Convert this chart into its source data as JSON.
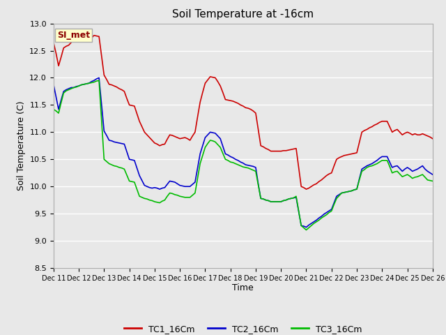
{
  "title": "Soil Temperature at -16cm",
  "xlabel": "Time",
  "ylabel": "Soil Temperature (C)",
  "ylim": [
    8.5,
    13.0
  ],
  "xtick_labels": [
    "Dec 11",
    "Dec 12",
    "Dec 13",
    "Dec 14",
    "Dec 15",
    "Dec 16",
    "Dec 17",
    "Dec 18",
    "Dec 19",
    "Dec 20",
    "Dec 21",
    "Dec 22",
    "Dec 23",
    "Dec 24",
    "Dec 25",
    "Dec 26"
  ],
  "annotation_text": "SI_met",
  "annotation_bg": "#ffffcc",
  "annotation_border": "#aaaaaa",
  "bg_color": "#e8e8e8",
  "grid_color": "#ffffff",
  "tc1_color": "#cc0000",
  "tc2_color": "#0000cc",
  "tc3_color": "#00bb00",
  "legend_labels": [
    "TC1_16Cm",
    "TC2_16Cm",
    "TC3_16Cm"
  ],
  "tc1_x": [
    0,
    0.1,
    0.2,
    0.3,
    0.4,
    0.5,
    0.6,
    0.7,
    0.8,
    0.9,
    1.0,
    1.1,
    1.2,
    1.3,
    1.4,
    1.5,
    1.6,
    1.7,
    1.8,
    1.9,
    2.0,
    2.1,
    2.2,
    2.3,
    2.4,
    2.5,
    2.6,
    2.7,
    2.8,
    2.9,
    3.0,
    3.1,
    3.2,
    3.3,
    3.4,
    3.5,
    3.6,
    3.7,
    3.8,
    3.9,
    4.0,
    4.1,
    4.2,
    4.3,
    4.4,
    4.5,
    4.6,
    4.7,
    4.8,
    4.9,
    5.0,
    5.1,
    5.2,
    5.3,
    5.4,
    5.5,
    5.6,
    5.7,
    5.8,
    5.9,
    6.0,
    6.1,
    6.2,
    6.3,
    6.4,
    6.5,
    6.6,
    6.7,
    6.8,
    6.9,
    7.0,
    7.1,
    7.2,
    7.3,
    7.4,
    7.5,
    7.6,
    7.7,
    7.8,
    7.9,
    8.0,
    8.1,
    8.2,
    8.3,
    8.4,
    8.5,
    8.6,
    8.7,
    8.8,
    8.9,
    9.0,
    9.1,
    9.2,
    9.3,
    9.4,
    9.5,
    9.6,
    9.7,
    9.8,
    9.9,
    10.0,
    10.1,
    10.2,
    10.3,
    10.4,
    10.5,
    10.6,
    10.7,
    10.8,
    10.9,
    11.0,
    11.1,
    11.2,
    11.3,
    11.4,
    11.5,
    11.6,
    11.7,
    11.8,
    11.9,
    12.0,
    12.1,
    12.2,
    12.3,
    12.4,
    12.5,
    12.6,
    12.7,
    12.8,
    12.9,
    13.0,
    13.1,
    13.2,
    13.3,
    13.4,
    13.5,
    13.6,
    13.7,
    13.8,
    13.9,
    14.0,
    14.1,
    14.2,
    14.3,
    14.4,
    14.5,
    14.6,
    14.7,
    14.8,
    14.9,
    15.0
  ],
  "tc1_y": [
    12.65,
    12.45,
    12.22,
    12.38,
    12.55,
    12.58,
    12.6,
    12.65,
    12.7,
    12.73,
    12.75,
    12.74,
    12.72,
    12.7,
    12.68,
    12.73,
    12.78,
    12.77,
    12.76,
    12.4,
    12.05,
    11.97,
    11.88,
    11.87,
    11.85,
    11.83,
    11.8,
    11.78,
    11.75,
    11.62,
    11.5,
    11.49,
    11.48,
    11.34,
    11.2,
    11.1,
    11.0,
    10.95,
    10.9,
    10.85,
    10.8,
    10.78,
    10.75,
    10.77,
    10.78,
    10.87,
    10.95,
    10.94,
    10.92,
    10.9,
    10.88,
    10.89,
    10.9,
    10.88,
    10.85,
    10.93,
    11.0,
    11.28,
    11.55,
    11.73,
    11.9,
    11.96,
    12.02,
    12.01,
    12.0,
    11.93,
    11.85,
    11.73,
    11.6,
    11.59,
    11.58,
    11.57,
    11.55,
    11.53,
    11.5,
    11.48,
    11.45,
    11.44,
    11.42,
    11.39,
    11.35,
    11.05,
    10.75,
    10.73,
    10.7,
    10.68,
    10.65,
    10.65,
    10.65,
    10.65,
    10.65,
    10.66,
    10.66,
    10.67,
    10.68,
    10.69,
    10.7,
    10.35,
    10.0,
    9.98,
    9.95,
    9.97,
    10.0,
    10.03,
    10.05,
    10.09,
    10.12,
    10.16,
    10.2,
    10.23,
    10.25,
    10.38,
    10.5,
    10.53,
    10.55,
    10.57,
    10.58,
    10.59,
    10.6,
    10.61,
    10.62,
    10.81,
    11.0,
    11.03,
    11.05,
    11.08,
    11.1,
    11.13,
    11.15,
    11.18,
    11.2,
    11.2,
    11.2,
    11.1,
    11.0,
    11.03,
    11.05,
    11.0,
    10.95,
    10.98,
    11.0,
    10.98,
    10.95,
    10.97,
    10.95,
    10.95,
    10.97,
    10.95,
    10.93,
    10.91,
    10.88
  ],
  "tc2_x": [
    0,
    0.1,
    0.2,
    0.3,
    0.4,
    0.5,
    0.6,
    0.7,
    0.8,
    0.9,
    1.0,
    1.1,
    1.2,
    1.3,
    1.4,
    1.5,
    1.6,
    1.7,
    1.8,
    1.9,
    2.0,
    2.1,
    2.2,
    2.3,
    2.4,
    2.5,
    2.6,
    2.7,
    2.8,
    2.9,
    3.0,
    3.1,
    3.2,
    3.3,
    3.4,
    3.5,
    3.6,
    3.7,
    3.8,
    3.9,
    4.0,
    4.1,
    4.2,
    4.3,
    4.4,
    4.5,
    4.6,
    4.7,
    4.8,
    4.9,
    5.0,
    5.1,
    5.2,
    5.3,
    5.4,
    5.5,
    5.6,
    5.7,
    5.8,
    5.9,
    6.0,
    6.1,
    6.2,
    6.3,
    6.4,
    6.5,
    6.6,
    6.7,
    6.8,
    6.9,
    7.0,
    7.1,
    7.2,
    7.3,
    7.4,
    7.5,
    7.6,
    7.7,
    7.8,
    7.9,
    8.0,
    8.1,
    8.2,
    8.3,
    8.4,
    8.5,
    8.6,
    8.7,
    8.8,
    8.9,
    9.0,
    9.1,
    9.2,
    9.3,
    9.4,
    9.5,
    9.6,
    9.7,
    9.8,
    9.9,
    10.0,
    10.1,
    10.2,
    10.3,
    10.4,
    10.5,
    10.6,
    10.7,
    10.8,
    10.9,
    11.0,
    11.1,
    11.2,
    11.3,
    11.4,
    11.5,
    11.6,
    11.7,
    11.8,
    11.9,
    12.0,
    12.1,
    12.2,
    12.3,
    12.4,
    12.5,
    12.6,
    12.7,
    12.8,
    12.9,
    13.0,
    13.1,
    13.2,
    13.3,
    13.4,
    13.5,
    13.6,
    13.7,
    13.8,
    13.9,
    14.0,
    14.1,
    14.2,
    14.3,
    14.4,
    14.5,
    14.6,
    14.7,
    14.8,
    14.9,
    15.0
  ],
  "tc2_y": [
    11.88,
    11.65,
    11.42,
    11.59,
    11.75,
    11.78,
    11.8,
    11.82,
    11.82,
    11.84,
    11.85,
    11.87,
    11.88,
    11.89,
    11.9,
    11.93,
    11.95,
    11.98,
    12.0,
    11.51,
    11.02,
    10.94,
    10.85,
    10.84,
    10.82,
    10.81,
    10.8,
    10.79,
    10.78,
    10.64,
    10.5,
    10.49,
    10.48,
    10.34,
    10.2,
    10.11,
    10.02,
    10.0,
    9.98,
    9.97,
    9.98,
    9.97,
    9.95,
    9.97,
    9.98,
    10.04,
    10.1,
    10.09,
    10.08,
    10.05,
    10.02,
    10.01,
    10.0,
    10.0,
    10.0,
    10.04,
    10.08,
    10.34,
    10.6,
    10.75,
    10.9,
    10.95,
    11.0,
    10.99,
    10.98,
    10.93,
    10.88,
    10.74,
    10.6,
    10.58,
    10.55,
    10.53,
    10.5,
    10.48,
    10.45,
    10.43,
    10.4,
    10.39,
    10.38,
    10.37,
    10.35,
    10.05,
    9.78,
    9.77,
    9.75,
    9.74,
    9.72,
    9.72,
    9.72,
    9.72,
    9.72,
    9.74,
    9.75,
    9.77,
    9.78,
    9.79,
    9.8,
    9.54,
    9.28,
    9.27,
    9.25,
    9.29,
    9.32,
    9.35,
    9.38,
    9.42,
    9.45,
    9.49,
    9.52,
    9.55,
    9.58,
    9.7,
    9.82,
    9.85,
    9.88,
    9.89,
    9.9,
    9.91,
    9.92,
    9.94,
    9.95,
    10.14,
    10.32,
    10.35,
    10.38,
    10.4,
    10.42,
    10.45,
    10.48,
    10.52,
    10.55,
    10.55,
    10.55,
    10.45,
    10.35,
    10.37,
    10.38,
    10.33,
    10.28,
    10.32,
    10.35,
    10.32,
    10.28,
    10.3,
    10.32,
    10.35,
    10.38,
    10.32,
    10.28,
    10.25,
    10.22
  ],
  "tc3_x": [
    0,
    0.1,
    0.2,
    0.3,
    0.4,
    0.5,
    0.6,
    0.7,
    0.8,
    0.9,
    1.0,
    1.1,
    1.2,
    1.3,
    1.4,
    1.5,
    1.6,
    1.7,
    1.8,
    1.9,
    2.0,
    2.1,
    2.2,
    2.3,
    2.4,
    2.5,
    2.6,
    2.7,
    2.8,
    2.9,
    3.0,
    3.1,
    3.2,
    3.3,
    3.4,
    3.5,
    3.6,
    3.7,
    3.8,
    3.9,
    4.0,
    4.1,
    4.2,
    4.3,
    4.4,
    4.5,
    4.6,
    4.7,
    4.8,
    4.9,
    5.0,
    5.1,
    5.2,
    5.3,
    5.4,
    5.5,
    5.6,
    5.7,
    5.8,
    5.9,
    6.0,
    6.1,
    6.2,
    6.3,
    6.4,
    6.5,
    6.6,
    6.7,
    6.8,
    6.9,
    7.0,
    7.1,
    7.2,
    7.3,
    7.4,
    7.5,
    7.6,
    7.7,
    7.8,
    7.9,
    8.0,
    8.1,
    8.2,
    8.3,
    8.4,
    8.5,
    8.6,
    8.7,
    8.8,
    8.9,
    9.0,
    9.1,
    9.2,
    9.3,
    9.4,
    9.5,
    9.6,
    9.7,
    9.8,
    9.9,
    10.0,
    10.1,
    10.2,
    10.3,
    10.4,
    10.5,
    10.6,
    10.7,
    10.8,
    10.9,
    11.0,
    11.1,
    11.2,
    11.3,
    11.4,
    11.5,
    11.6,
    11.7,
    11.8,
    11.9,
    12.0,
    12.1,
    12.2,
    12.3,
    12.4,
    12.5,
    12.6,
    12.7,
    12.8,
    12.9,
    13.0,
    13.1,
    13.2,
    13.3,
    13.4,
    13.5,
    13.6,
    13.7,
    13.8,
    13.9,
    14.0,
    14.1,
    14.2,
    14.3,
    14.4,
    14.5,
    14.6,
    14.7,
    14.8,
    14.9,
    15.0
  ],
  "tc3_y": [
    11.42,
    11.39,
    11.35,
    11.54,
    11.72,
    11.76,
    11.78,
    11.8,
    11.82,
    11.83,
    11.85,
    11.87,
    11.88,
    11.89,
    11.9,
    11.91,
    11.92,
    11.94,
    11.95,
    11.23,
    10.5,
    10.46,
    10.42,
    10.4,
    10.38,
    10.37,
    10.35,
    10.34,
    10.32,
    10.21,
    10.1,
    10.09,
    10.08,
    9.95,
    9.82,
    9.8,
    9.78,
    9.77,
    9.75,
    9.74,
    9.72,
    9.71,
    9.7,
    9.73,
    9.75,
    9.82,
    9.88,
    9.87,
    9.85,
    9.84,
    9.82,
    9.81,
    9.8,
    9.8,
    9.8,
    9.84,
    9.88,
    10.15,
    10.42,
    10.57,
    10.72,
    10.79,
    10.85,
    10.84,
    10.82,
    10.77,
    10.72,
    10.61,
    10.5,
    10.48,
    10.45,
    10.44,
    10.42,
    10.4,
    10.38,
    10.36,
    10.35,
    10.34,
    10.32,
    10.3,
    10.28,
    10.03,
    9.78,
    9.77,
    9.75,
    9.74,
    9.72,
    9.72,
    9.72,
    9.72,
    9.72,
    9.74,
    9.75,
    9.77,
    9.78,
    9.79,
    9.82,
    9.55,
    9.28,
    9.24,
    9.2,
    9.24,
    9.28,
    9.32,
    9.35,
    9.38,
    9.42,
    9.45,
    9.48,
    9.52,
    9.55,
    9.67,
    9.78,
    9.83,
    9.88,
    9.89,
    9.9,
    9.91,
    9.92,
    9.94,
    9.95,
    10.12,
    10.28,
    10.31,
    10.35,
    10.37,
    10.38,
    10.4,
    10.42,
    10.45,
    10.48,
    10.48,
    10.48,
    10.37,
    10.25,
    10.27,
    10.28,
    10.23,
    10.18,
    10.2,
    10.22,
    10.19,
    10.15,
    10.17,
    10.18,
    10.2,
    10.22,
    10.17,
    10.12,
    10.11,
    10.1
  ]
}
